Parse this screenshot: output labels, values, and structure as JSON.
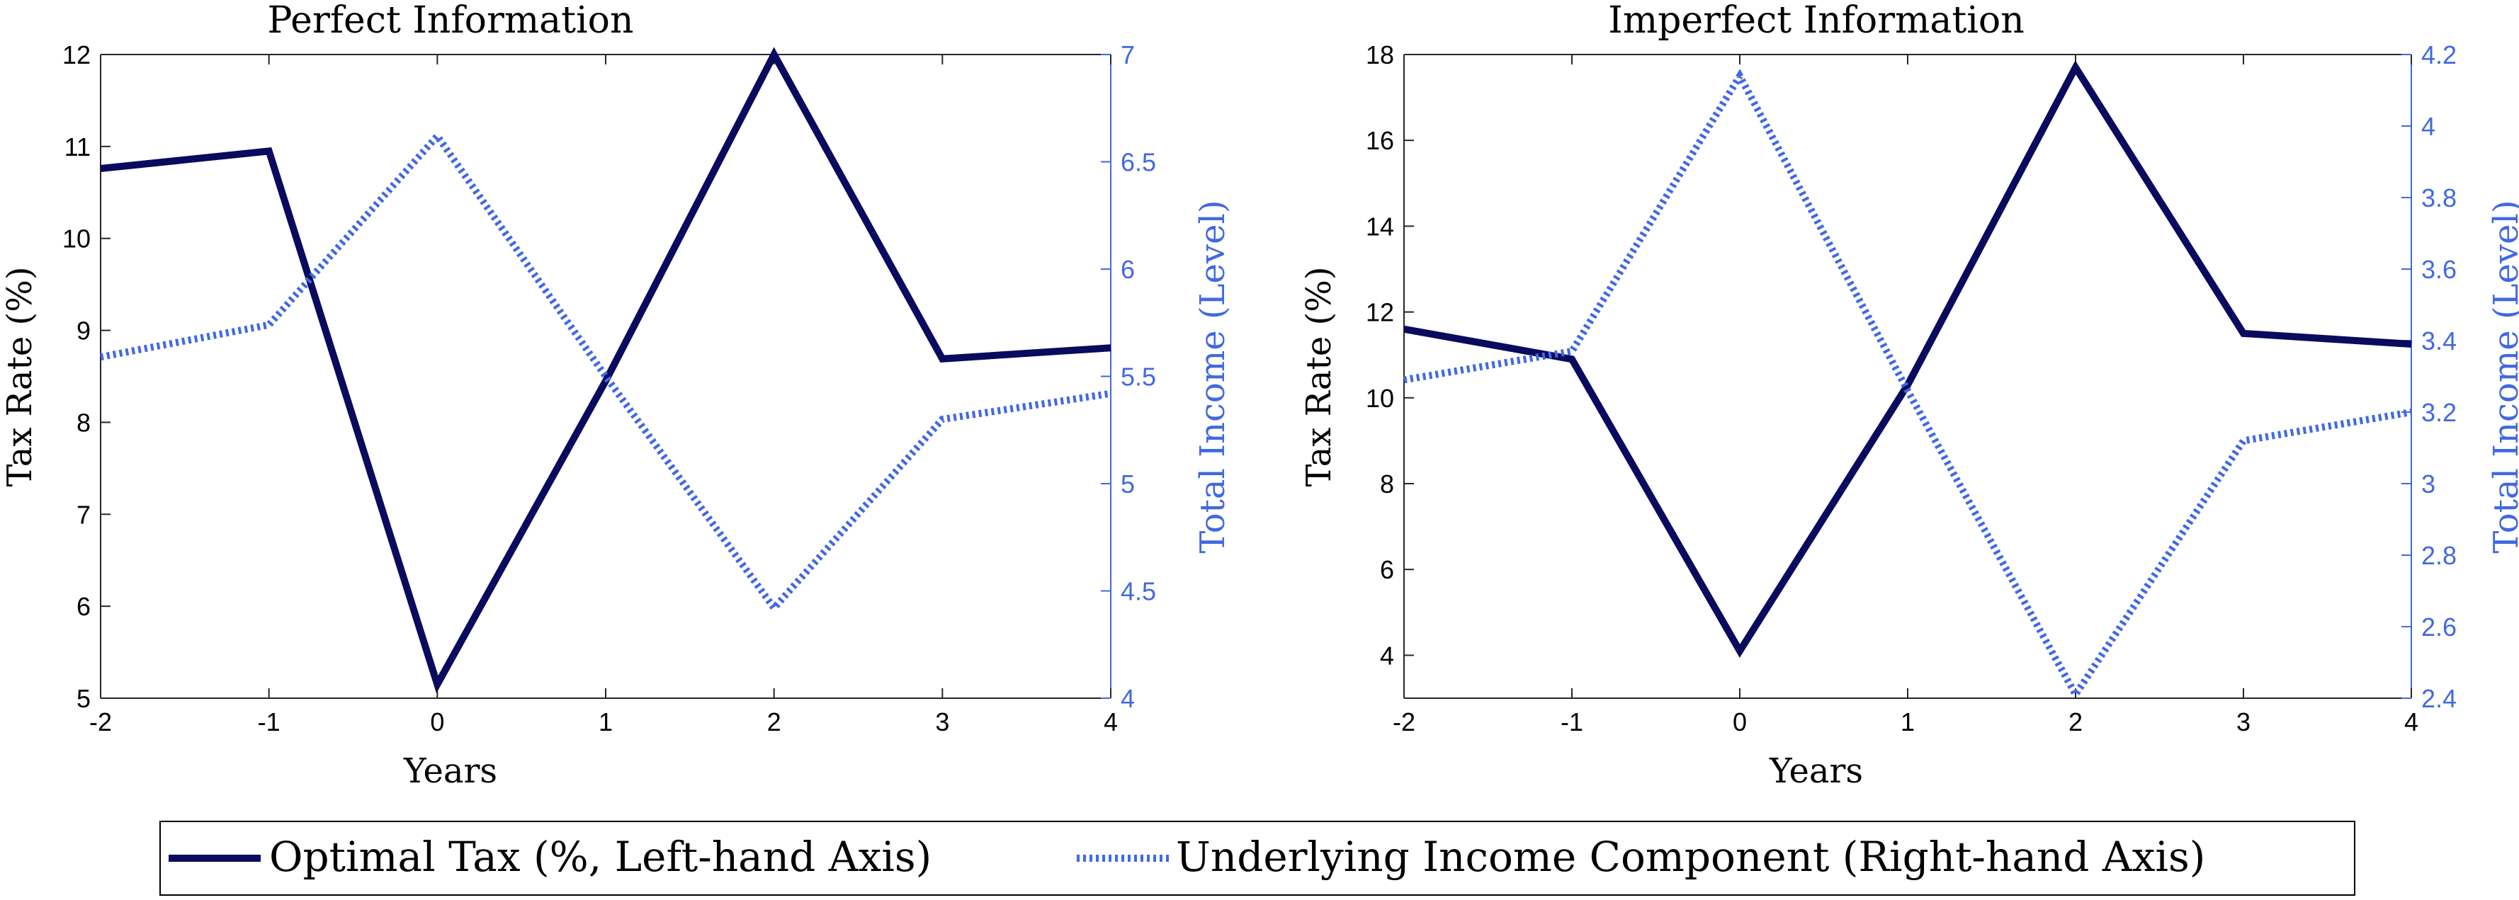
{
  "chart_data": [
    {
      "type": "line",
      "title": "Perfect Information",
      "xlabel": "Years",
      "ylabel": "Tax Rate (%)",
      "y2label": "Total Income (Level)",
      "x": [
        -2,
        -1,
        0,
        1,
        2,
        3,
        4
      ],
      "xlim": [
        -2,
        4
      ],
      "xticks": [
        "-2",
        "-1",
        "0",
        "1",
        "2",
        "3",
        "4"
      ],
      "ylim": [
        5,
        12
      ],
      "yticks": [
        "5",
        "6",
        "7",
        "8",
        "9",
        "10",
        "11",
        "12"
      ],
      "y2lim": [
        4,
        7
      ],
      "y2ticks": [
        "4",
        "4.5",
        "5",
        "5.5",
        "6",
        "6.5",
        "7"
      ],
      "grid": false,
      "series": [
        {
          "name": "Optimal Tax (%, Left-hand Axis)",
          "axis": "left",
          "color": "#0a0a5e",
          "style": "solid",
          "values": [
            10.76,
            10.95,
            5.15,
            8.45,
            12.0,
            8.69,
            8.81
          ]
        },
        {
          "name": "Underlying Income Component (Right-hand Axis)",
          "axis": "right",
          "color": "#4169e1",
          "style": "dotted",
          "values": [
            5.59,
            5.74,
            6.62,
            5.5,
            4.42,
            5.3,
            5.42
          ]
        }
      ]
    },
    {
      "type": "line",
      "title": "Imperfect Information",
      "xlabel": "Years",
      "ylabel": "Tax Rate (%)",
      "y2label": "Total Income (Level)",
      "x": [
        -2,
        -1,
        0,
        1,
        2,
        3,
        4
      ],
      "xlim": [
        -2,
        4
      ],
      "xticks": [
        "-2",
        "-1",
        "0",
        "1",
        "2",
        "3",
        "4"
      ],
      "ylim": [
        3,
        18
      ],
      "yticks": [
        "4",
        "6",
        "8",
        "10",
        "12",
        "14",
        "16",
        "18"
      ],
      "y2lim": [
        2.4,
        4.2
      ],
      "y2ticks": [
        "2.4",
        "2.6",
        "2.8",
        "3",
        "3.2",
        "3.4",
        "3.6",
        "3.8",
        "4",
        "4.2"
      ],
      "grid": false,
      "series": [
        {
          "name": "Optimal Tax (%, Left-hand Axis)",
          "axis": "left",
          "color": "#0a0a5e",
          "style": "solid",
          "values": [
            11.6,
            10.9,
            4.1,
            10.3,
            17.7,
            11.5,
            11.25
          ]
        },
        {
          "name": "Underlying Income Component (Right-hand Axis)",
          "axis": "right",
          "color": "#4169e1",
          "style": "dotted",
          "values": [
            3.29,
            3.37,
            4.14,
            3.26,
            2.41,
            3.12,
            3.2
          ]
        }
      ]
    }
  ],
  "legend": {
    "placement": "bottom",
    "items": [
      {
        "label": "Optimal Tax (%, Left-hand Axis)",
        "color": "#0a0a5e",
        "style": "solid"
      },
      {
        "label": "Underlying Income Component (Right-hand Axis)",
        "color": "#4169e1",
        "style": "dotted"
      }
    ]
  }
}
